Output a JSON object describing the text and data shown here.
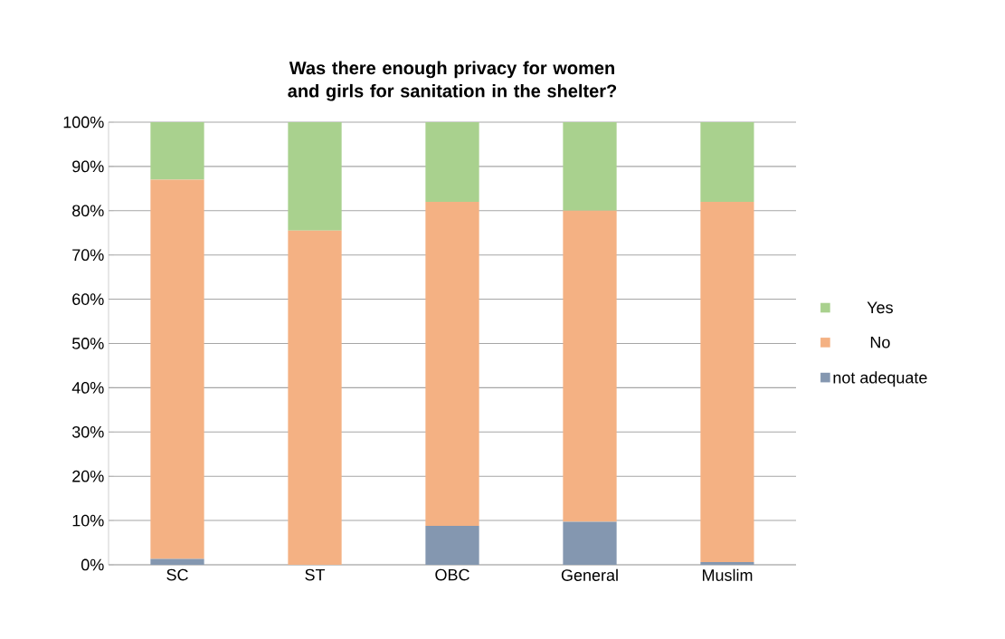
{
  "chart_data": {
    "type": "bar",
    "title": "Was there enough privacy for women and girls for sanitation in the shelter?",
    "stacked": true,
    "categories": [
      "SC",
      "ST",
      "OBC",
      "General",
      "Muslim"
    ],
    "series": [
      {
        "name": "not adequate",
        "color": "#8497b0",
        "values": [
          1.3,
          0,
          8.8,
          9.7,
          0.6
        ]
      },
      {
        "name": "No",
        "color": "#f4b183",
        "values": [
          85.7,
          75.5,
          73.2,
          70.3,
          81.4
        ]
      },
      {
        "name": "Yes",
        "color": "#a9d18e",
        "values": [
          13,
          24.5,
          18,
          20,
          18
        ]
      }
    ],
    "ylim": [
      0,
      100
    ],
    "yticks": [
      {
        "value": 0,
        "label": "0%"
      },
      {
        "value": 10,
        "label": "10%"
      },
      {
        "value": 20,
        "label": "20%"
      },
      {
        "value": 30,
        "label": "30%"
      },
      {
        "value": 40,
        "label": "40%"
      },
      {
        "value": 50,
        "label": "50%"
      },
      {
        "value": 60,
        "label": "60%"
      },
      {
        "value": 70,
        "label": "70%"
      },
      {
        "value": 80,
        "label": "80%"
      },
      {
        "value": 90,
        "label": "90%"
      },
      {
        "value": 100,
        "label": "100%"
      }
    ],
    "grid": "y",
    "legend": "right"
  }
}
